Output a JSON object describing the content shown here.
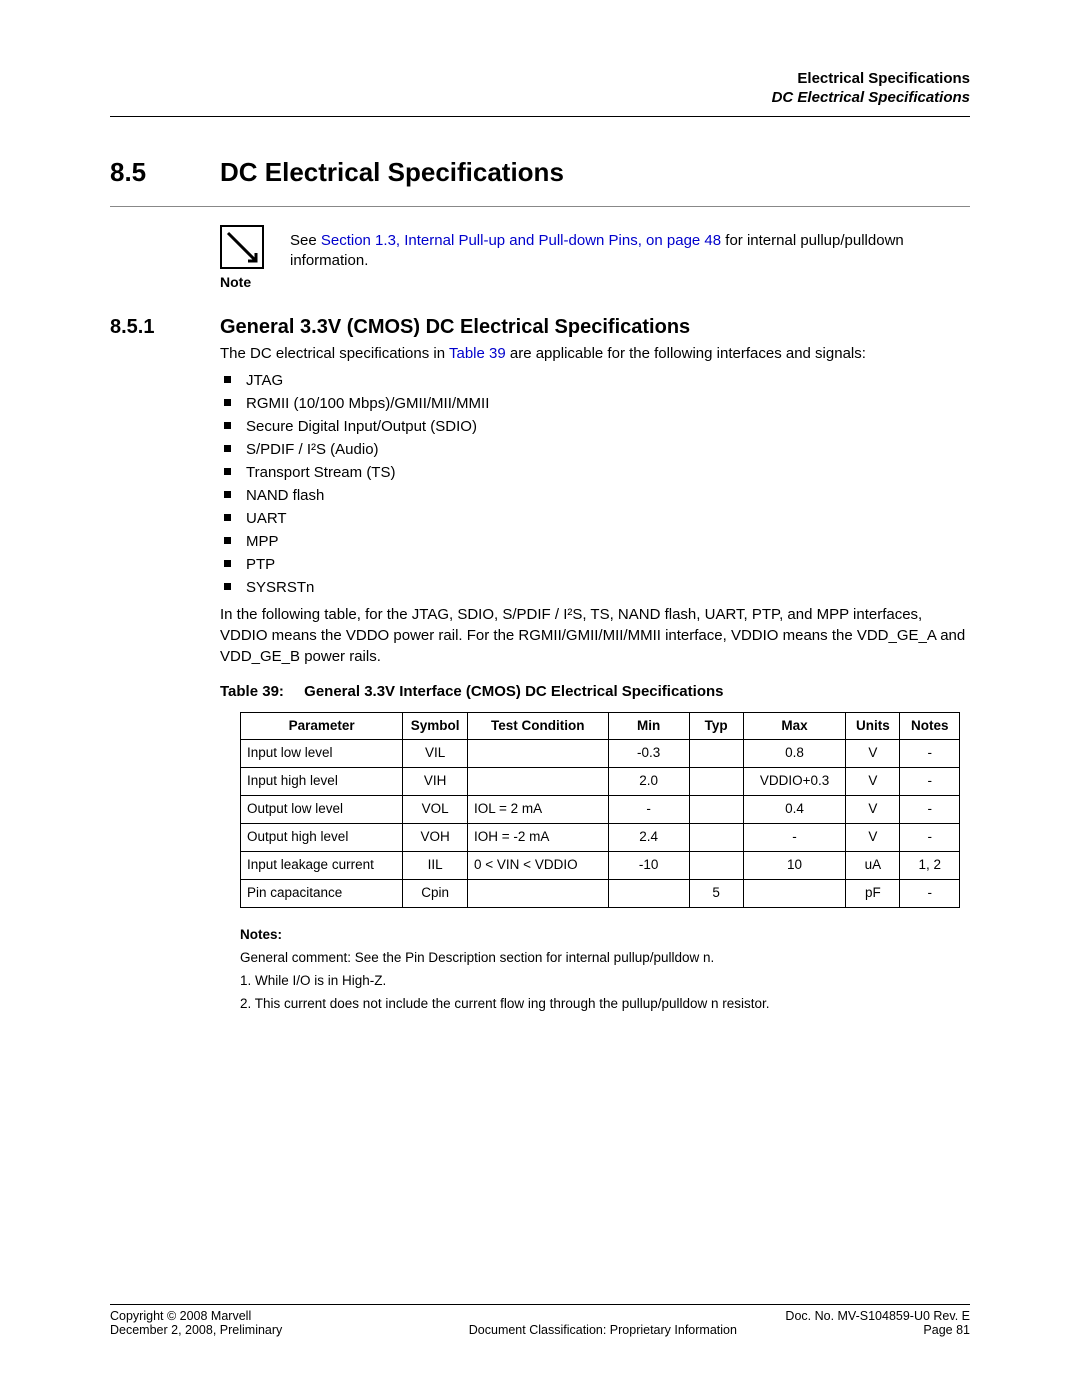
{
  "header": {
    "line1": "Electrical Specifications",
    "line2": "DC Electrical Specifications"
  },
  "section": {
    "number": "8.5",
    "title": "DC Electrical Specifications"
  },
  "note": {
    "label": "Note",
    "pre": "See ",
    "link": "Section 1.3, Internal Pull-up and Pull-down Pins, on page 48",
    "post": " for internal pullup/pulldown information.",
    "link_color": "#0000cc"
  },
  "subsection": {
    "number": "8.5.1",
    "title": "General 3.3V (CMOS) DC Electrical Specifications"
  },
  "intro": {
    "pre": "The DC electrical specifications in ",
    "link": "Table 39",
    "post": " are applicable for the following interfaces and signals:",
    "link_color": "#0000cc"
  },
  "bullets": [
    "JTAG",
    "RGMII (10/100 Mbps)/GMII/MII/MMII",
    "Secure Digital Input/Output (SDIO)",
    "S/PDIF / I²S (Audio)",
    "Transport Stream (TS)",
    "NAND flash",
    "UART",
    "MPP",
    "PTP",
    "SYSRSTn"
  ],
  "para2": "In the following table, for the JTAG, SDIO, S/PDIF / I²S, TS, NAND flash, UART, PTP, and MPP interfaces, VDDIO means the VDDO power rail. For the RGMII/GMII/MII/MMII interface, VDDIO means the VDD_GE_A and VDD_GE_B power rails.",
  "table": {
    "caption_label": "Table 39:",
    "caption_title": "General 3.3V Interface (CMOS) DC Electrical Specifications",
    "columns": [
      "Parameter",
      "Symbol",
      "Test Condition",
      "Min",
      "Typ",
      "Max",
      "Units",
      "Notes"
    ],
    "col_align": [
      "left",
      "center",
      "left",
      "center",
      "center",
      "center",
      "center",
      "center"
    ],
    "rows": [
      [
        "Input low level",
        "VIL",
        "",
        "-0.3",
        "",
        "0.8",
        "V",
        "-"
      ],
      [
        "Input high level",
        "VIH",
        "",
        "2.0",
        "",
        "VDDIO+0.3",
        "V",
        "-"
      ],
      [
        "Output low level",
        "VOL",
        "IOL = 2 mA",
        "-",
        "",
        "0.4",
        "V",
        "-"
      ],
      [
        "Output high level",
        "VOH",
        "IOH = -2 mA",
        "2.4",
        "",
        "-",
        "V",
        "-"
      ],
      [
        "Input leakage current",
        "IIL",
        "0 < VIN < VDDIO",
        "-10",
        "",
        "10",
        "uA",
        "1, 2"
      ],
      [
        "Pin capacitance",
        "Cpin",
        "",
        "",
        "5",
        "",
        "pF",
        "-"
      ]
    ],
    "border_color": "#000000",
    "font_size": 13.5
  },
  "notes": {
    "heading": "Notes:",
    "lines": [
      "General comment: See the Pin Description section for internal pullup/pulldow n.",
      "1. While I/O is in High-Z.",
      "2. This current does not include the current flow ing through the pullup/pulldow n resistor."
    ]
  },
  "footer": {
    "left1": "Copyright © 2008 Marvell",
    "left2": "December 2, 2008, Preliminary",
    "center2": "Document Classification: Proprietary Information",
    "right1": "Doc. No. MV-S104859-U0  Rev. E",
    "right2": "Page 81"
  },
  "colors": {
    "text": "#000000",
    "background": "#ffffff",
    "rule": "#000000",
    "sub_rule": "#888888",
    "link": "#0000cc"
  },
  "typography": {
    "body_font": "Arial, Helvetica, sans-serif",
    "section_title_size": 26,
    "subsection_title_size": 20,
    "body_size": 15,
    "table_size": 13.5,
    "footer_size": 12.5
  }
}
